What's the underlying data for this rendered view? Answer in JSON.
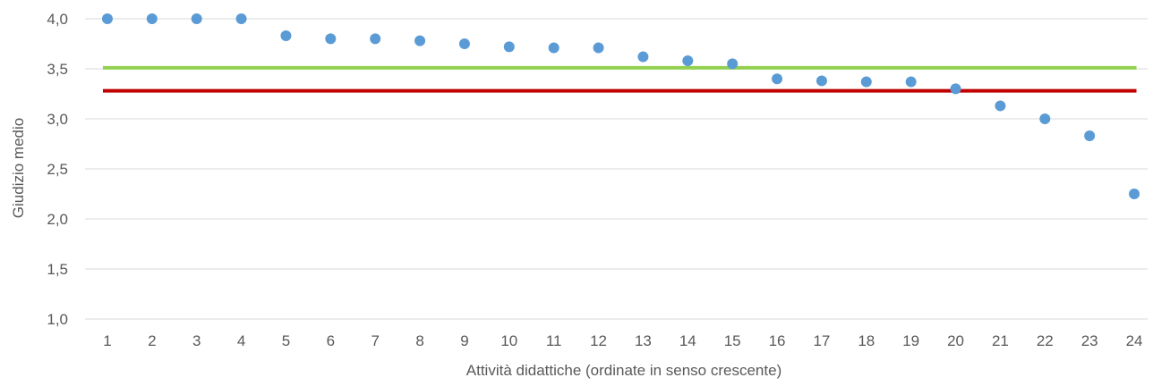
{
  "chart_data": {
    "type": "scatter",
    "xlabel": "Attività didattiche (ordinate in senso crescente)",
    "ylabel": "Giudizio medio",
    "x_ticks": [
      "1",
      "2",
      "3",
      "4",
      "5",
      "6",
      "7",
      "8",
      "9",
      "10",
      "11",
      "12",
      "13",
      "14",
      "15",
      "16",
      "17",
      "18",
      "19",
      "20",
      "21",
      "22",
      "23",
      "24"
    ],
    "y_ticks": [
      "1,0",
      "1,5",
      "2,0",
      "2,5",
      "3,0",
      "3,5",
      "4,0"
    ],
    "ylim": [
      1.0,
      4.0
    ],
    "xlim": [
      0.5,
      24.3
    ],
    "grid": true,
    "legend": "none",
    "series": [
      {
        "x": [
          1,
          2,
          3,
          4,
          5,
          6,
          7,
          8,
          9,
          10,
          11,
          12,
          13,
          14,
          15,
          16,
          17,
          18,
          19,
          20,
          21,
          22,
          23,
          24
        ],
        "y": [
          4.0,
          4.0,
          4.0,
          4.0,
          3.83,
          3.8,
          3.8,
          3.78,
          3.75,
          3.72,
          3.71,
          3.71,
          3.62,
          3.58,
          3.55,
          3.4,
          3.38,
          3.37,
          3.37,
          3.3,
          3.13,
          3.0,
          2.83,
          2.25
        ],
        "color": "#5b9bd5"
      }
    ],
    "reference_lines": [
      {
        "y": 3.51,
        "color": "#92d050"
      },
      {
        "y": 3.28,
        "color": "#c00000"
      }
    ]
  }
}
